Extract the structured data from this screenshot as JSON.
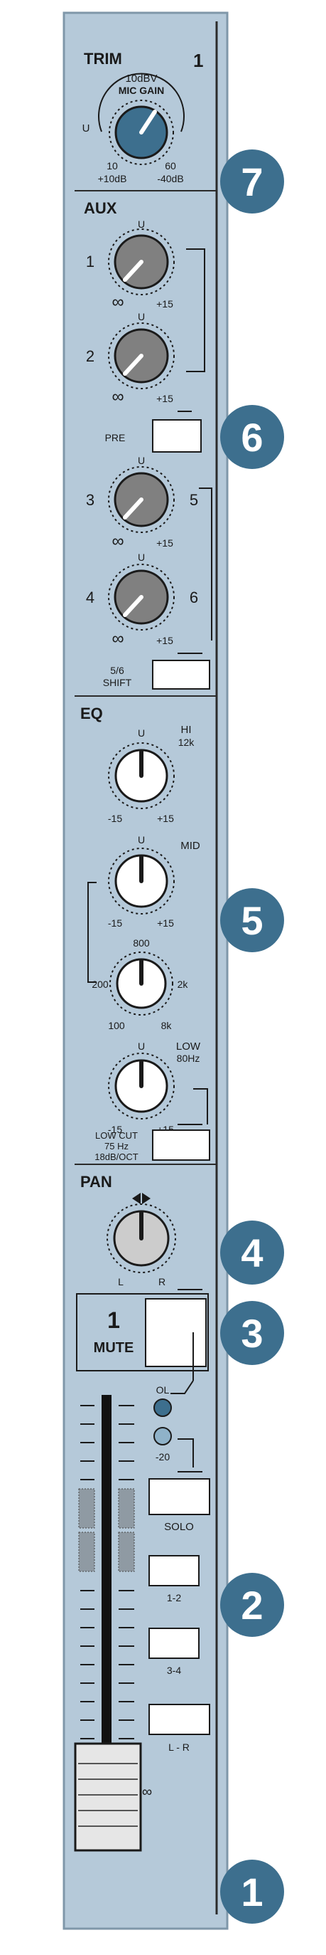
{
  "channel": {
    "number": "1"
  },
  "trim": {
    "title": "TRIM",
    "top_label": "10dBV",
    "gain_label": "MIC GAIN",
    "left_label": "U",
    "bottom_left": "10",
    "bottom_left_sub": "+10dB",
    "bottom_right": "60",
    "bottom_right_sub": "-40dB"
  },
  "aux": {
    "title": "AUX",
    "knobs": [
      {
        "num": "1",
        "top": "U",
        "min": "∞",
        "max": "+15"
      },
      {
        "num": "2",
        "top": "U",
        "min": "∞",
        "max": "+15"
      },
      {
        "num": "3",
        "right": "5",
        "top": "U",
        "min": "∞",
        "max": "+15"
      },
      {
        "num": "4",
        "right": "6",
        "top": "U",
        "min": "∞",
        "max": "+15"
      }
    ],
    "pre_label": "PRE",
    "shift_label_1": "5/6",
    "shift_label_2": "SHIFT"
  },
  "eq": {
    "title": "EQ",
    "hi": {
      "name": "HI",
      "freq": "12k",
      "top": "U",
      "min": "-15",
      "max": "+15"
    },
    "mid": {
      "name": "MID",
      "top": "U",
      "min": "-15",
      "max": "+15"
    },
    "freq": {
      "top": "800",
      "left": "200",
      "right": "2k",
      "min": "100",
      "max": "8k"
    },
    "low": {
      "name": "LOW",
      "freq": "80Hz",
      "top": "U",
      "min": "-15",
      "max": "+15"
    },
    "lowcut": {
      "line1": "LOW CUT",
      "line2": "75 Hz",
      "line3": "18dB/OCT"
    }
  },
  "pan": {
    "title": "PAN",
    "left": "L",
    "right": "R"
  },
  "mute": {
    "number": "1",
    "label": "MUTE"
  },
  "meters": {
    "ol": "OL",
    "minus20": "-20"
  },
  "buttons": {
    "solo": "SOLO",
    "bus12": "1-2",
    "bus34": "3-4",
    "lr": "L - R"
  },
  "fader": {
    "infinity": "∞"
  },
  "callouts": [
    "7",
    "6",
    "5",
    "4",
    "3",
    "2",
    "1"
  ],
  "colors": {
    "panel": "#b5c9d9",
    "panel_edge": "#6f879b",
    "callout": "#3d6f8e",
    "aux_knob": "#808080",
    "eq_knob": "#ffffff",
    "trim_knob": "#3d6f8e",
    "pan_knob": "#cccccc",
    "led_ol": "#3d6f8e",
    "led_20": "#8fb2c9"
  }
}
